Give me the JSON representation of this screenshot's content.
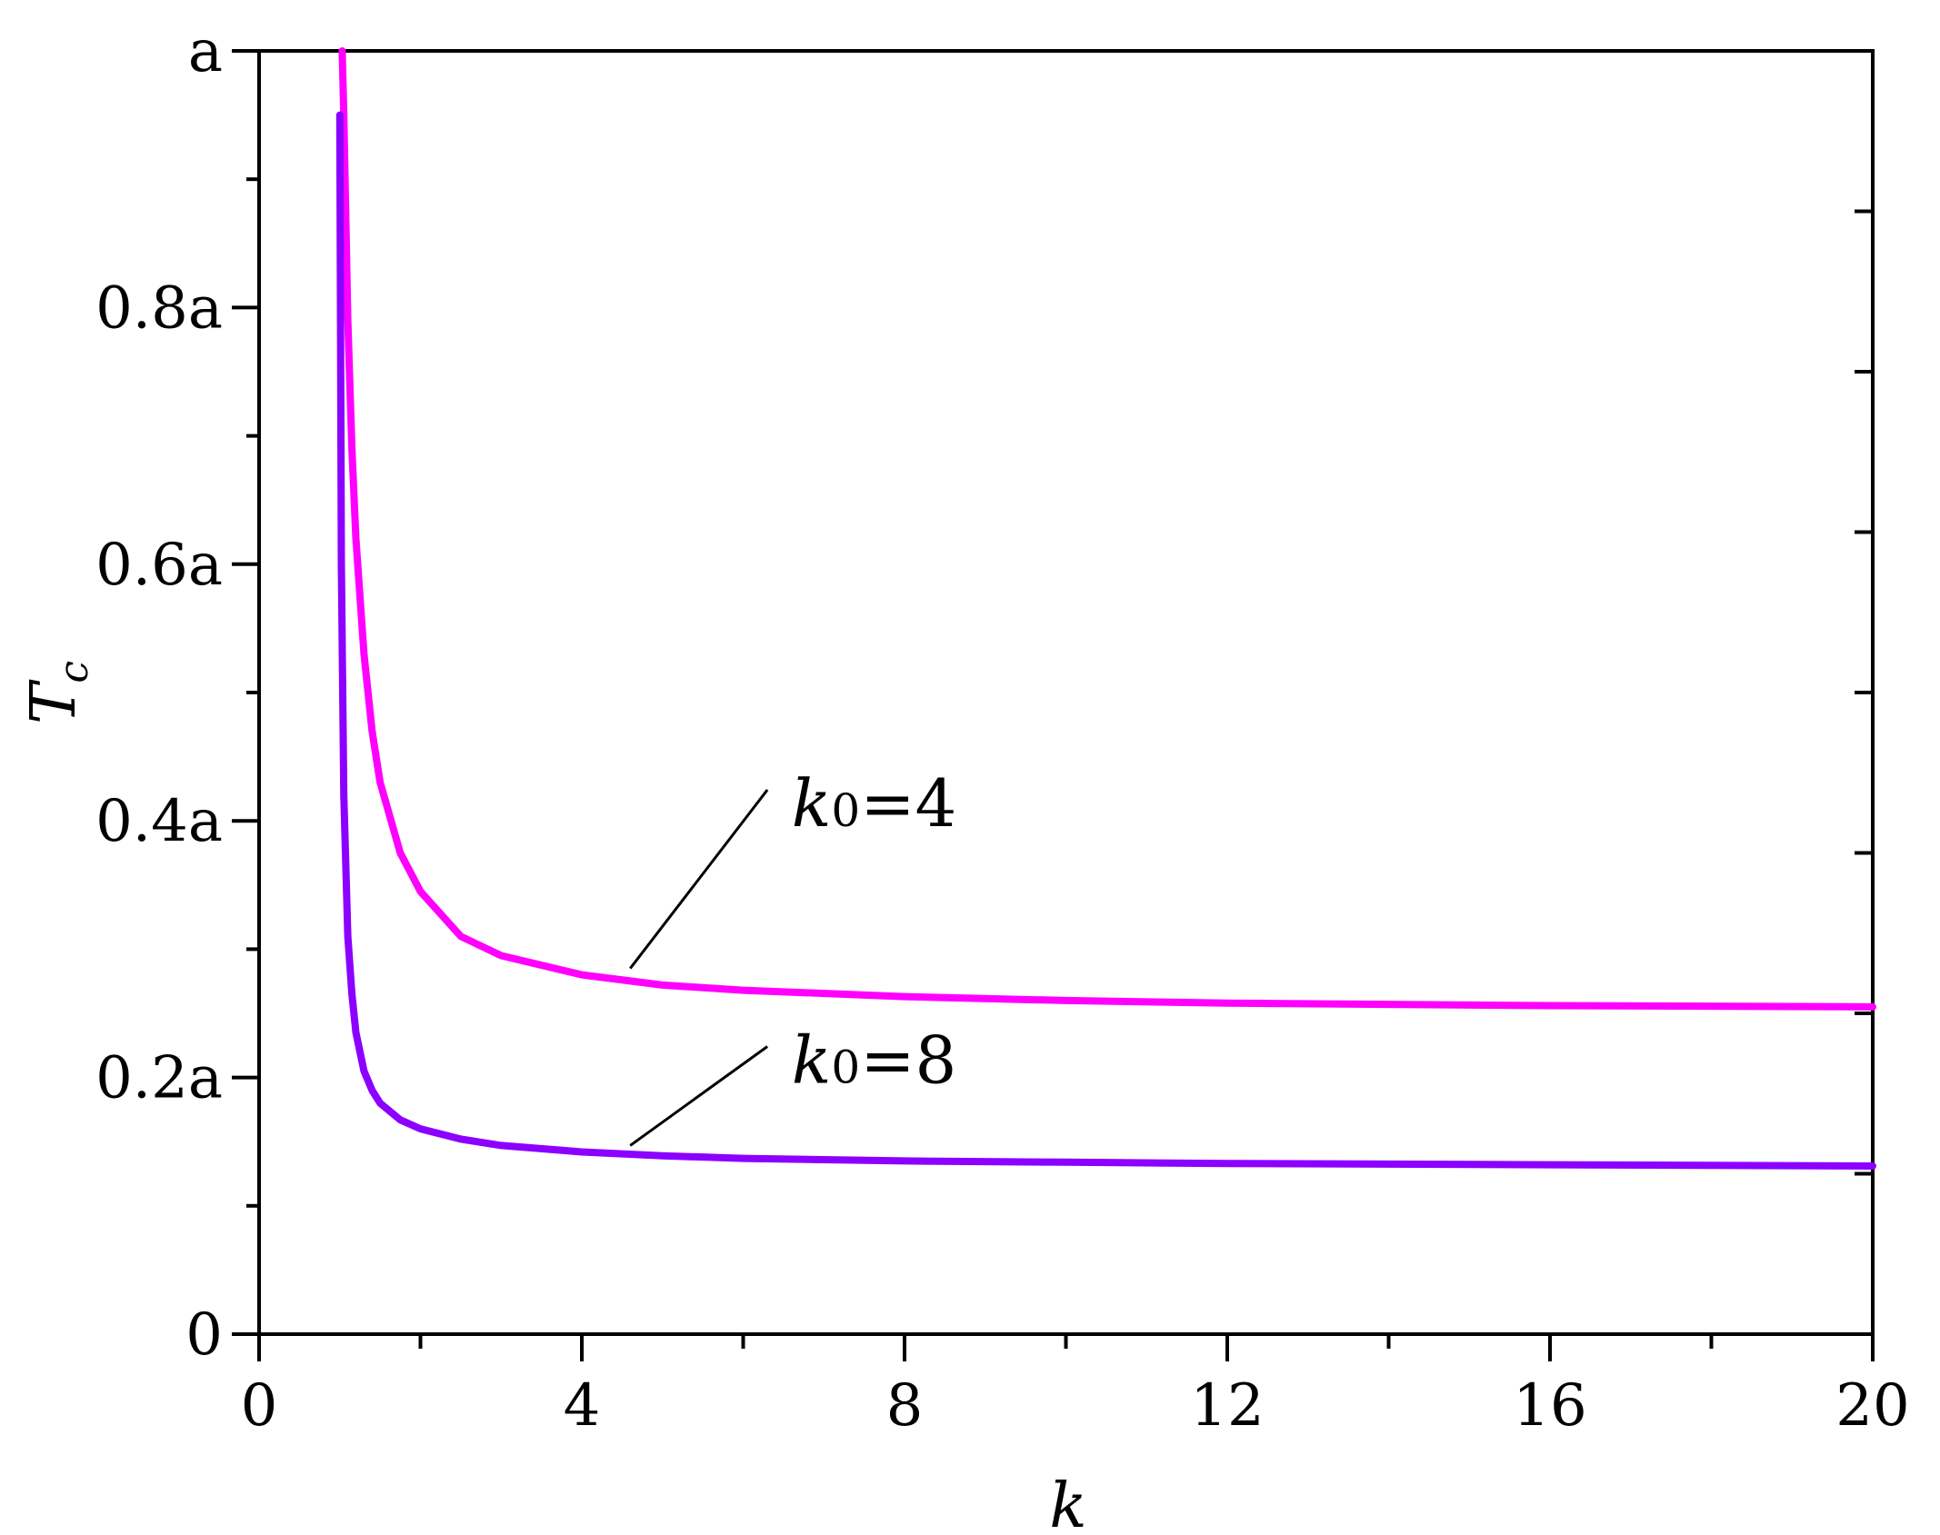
{
  "chart_data": {
    "type": "line",
    "title": "",
    "xlabel": "k",
    "ylabel": "T",
    "ylabel_sub": "c",
    "xlim": [
      0,
      20
    ],
    "ylim": [
      0,
      1
    ],
    "x_ticks": [
      0,
      4,
      8,
      12,
      16,
      20
    ],
    "x_tick_labels": [
      "0",
      "4",
      "8",
      "12",
      "16",
      "20"
    ],
    "y_ticks": [
      0,
      0.2,
      0.4,
      0.6,
      0.8,
      1.0
    ],
    "y_tick_labels": [
      "0",
      "0.2a",
      "0.4a",
      "0.6a",
      "0.8a",
      "a"
    ],
    "grid": false,
    "series": [
      {
        "name": "k0=4",
        "label_var": "k",
        "label_sub": "0",
        "label_rest": "=4",
        "color": "#ff00ff",
        "x": [
          1.03,
          1.05,
          1.1,
          1.15,
          1.2,
          1.3,
          1.4,
          1.5,
          1.75,
          2.0,
          2.5,
          3.0,
          4.0,
          5.0,
          6.0,
          8.0,
          10.0,
          12.0,
          16.0,
          20.0
        ],
        "y": [
          1.0,
          0.95,
          0.79,
          0.69,
          0.62,
          0.53,
          0.47,
          0.43,
          0.375,
          0.345,
          0.31,
          0.295,
          0.28,
          0.272,
          0.268,
          0.263,
          0.26,
          0.258,
          0.256,
          0.255
        ]
      },
      {
        "name": "k0=8",
        "label_var": "k",
        "label_sub": "0",
        "label_rest": "=8",
        "color": "#8b00ff",
        "x": [
          1.0,
          1.02,
          1.05,
          1.1,
          1.15,
          1.2,
          1.3,
          1.4,
          1.5,
          1.75,
          2.0,
          2.5,
          3.0,
          4.0,
          5.0,
          6.0,
          8.0,
          10.0,
          12.0,
          16.0,
          20.0
        ],
        "y": [
          0.95,
          0.6,
          0.42,
          0.31,
          0.265,
          0.235,
          0.205,
          0.19,
          0.18,
          0.167,
          0.16,
          0.152,
          0.147,
          0.142,
          0.139,
          0.137,
          0.135,
          0.134,
          0.133,
          0.132,
          0.131
        ]
      }
    ]
  }
}
